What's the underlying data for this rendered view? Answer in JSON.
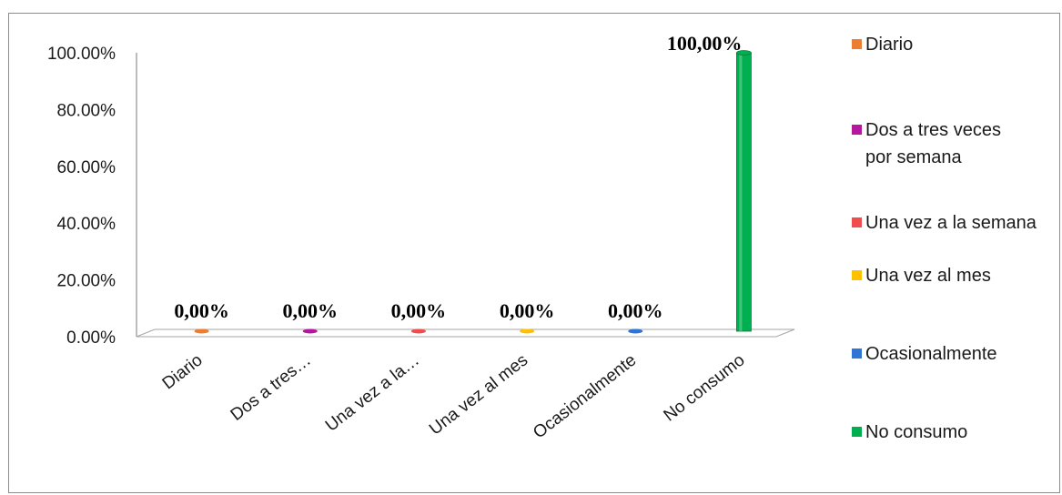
{
  "chart_data": {
    "type": "bar",
    "categories": [
      "Diario",
      "Dos a tres…",
      "Una vez a la…",
      "Una vez al mes",
      "Ocasionalmente",
      "No consumo"
    ],
    "values": [
      0,
      0,
      0,
      0,
      0,
      100
    ],
    "data_labels": [
      "0,00%",
      "0,00%",
      "0,00%",
      "0,00%",
      "0,00%",
      "100,00%"
    ],
    "colors": [
      "#ed7d31",
      "#b5179e",
      "#f04e4e",
      "#ffc000",
      "#2e75d6",
      "#00b050"
    ],
    "yticks": [
      "0.00%",
      "20.00%",
      "40.00%",
      "60.00%",
      "80.00%",
      "100.00%"
    ],
    "ylim": [
      0,
      100
    ],
    "legend": [
      {
        "label": "Diario",
        "color": "#ed7d31"
      },
      {
        "label": "Dos a tres veces por semana",
        "color": "#b5179e"
      },
      {
        "label": "Una vez a la semana",
        "color": "#f04e4e"
      },
      {
        "label": "Una vez al mes",
        "color": "#ffc000"
      },
      {
        "label": "Ocasionalmente",
        "color": "#2e75d6"
      },
      {
        "label": "No consumo",
        "color": "#00b050"
      }
    ],
    "legend_position": "right",
    "grid": false,
    "style": "3d-cylinder"
  }
}
